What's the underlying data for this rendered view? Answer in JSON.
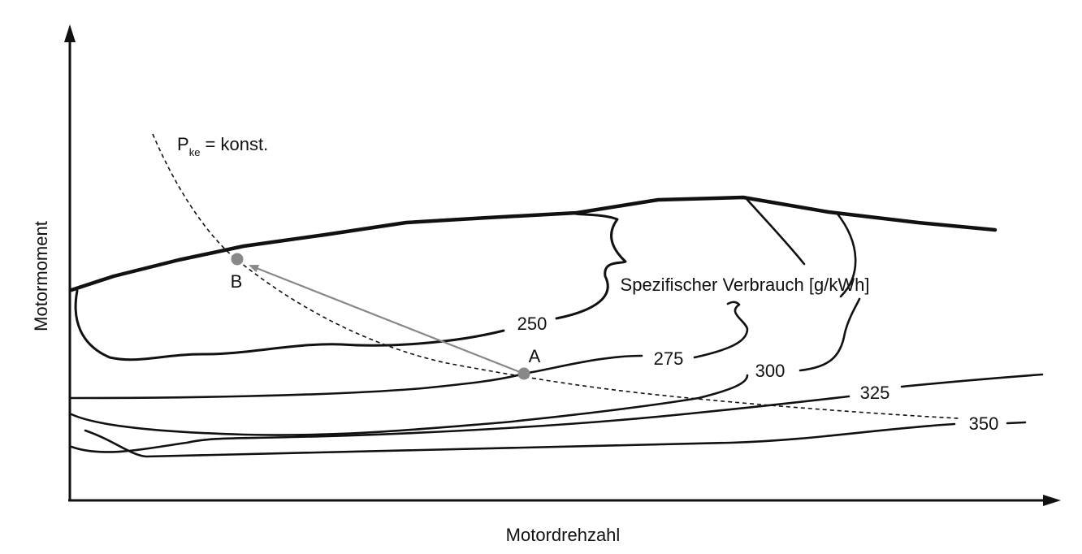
{
  "axes": {
    "x_label": "Motordrehzahl",
    "y_label": "Motormoment"
  },
  "annotations": {
    "power_curve_main": "P",
    "power_curve_sub": "ke",
    "power_curve_suffix": " = konst.",
    "consumption_label": "Spezifischer Verbrauch [g/kWh]",
    "point_a": "A",
    "point_b": "B"
  },
  "contour_labels": [
    "250",
    "275",
    "300",
    "325",
    "350"
  ],
  "colors": {
    "line": "#111111",
    "point": "#888888",
    "arrow": "#888888"
  }
}
